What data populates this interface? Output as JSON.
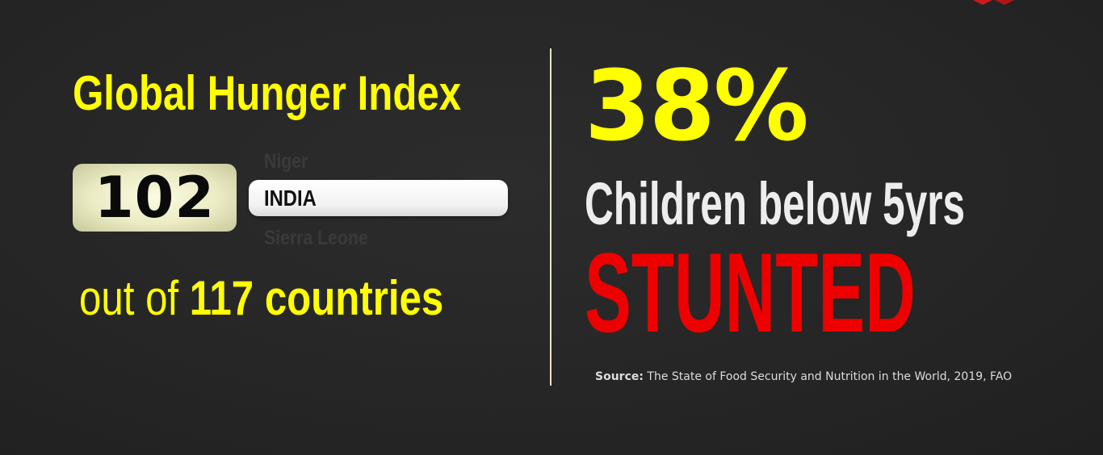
{
  "left_panel": {
    "title": "Global Hunger Index",
    "rank": "102",
    "neighbor_above": "Niger",
    "country": "INDIA",
    "neighbor_below": "Sierra Leone",
    "out_of_prefix": "out of",
    "out_of_count": "117 countries"
  },
  "right_panel": {
    "percent": "38%",
    "subtitle": "Children below 5yrs",
    "status": "STUNTED",
    "source_label": "Source:",
    "source_text": "The State of Food Security and Nutrition in the World, 2019, FAO"
  },
  "colors": {
    "background": "#262626",
    "highlight_yellow": "#ffff00",
    "alert_red": "#ee0000",
    "text_light": "#ededed"
  }
}
